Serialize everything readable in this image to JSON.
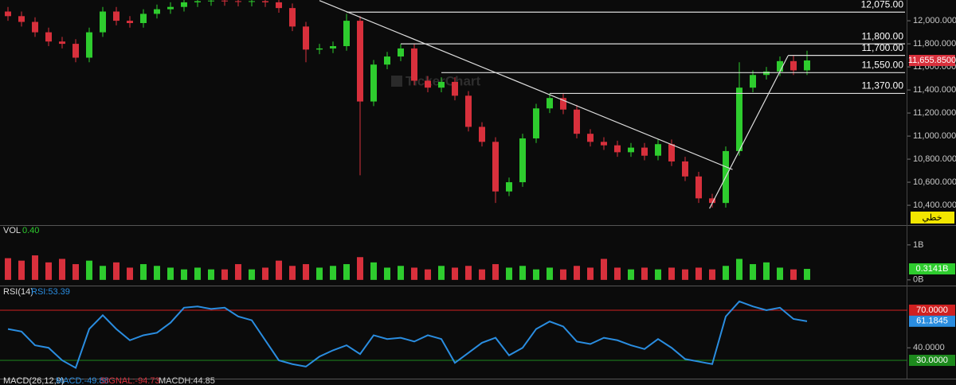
{
  "watermark": "TickerChart",
  "chart_data": [
    {
      "type": "candlestick",
      "mode_badge": "خطي",
      "last_value_label": "11,655.8500",
      "up_color": "#2ecc2e",
      "down_color": "#d8303c",
      "open": [
        12080,
        12040,
        11990,
        11900,
        11820,
        11800,
        11680,
        11900,
        12080,
        12000,
        11980,
        12060,
        12100,
        12120,
        12160,
        12170,
        12175,
        12170,
        12165,
        12170,
        12160,
        12110,
        11950,
        11750,
        11760,
        11780,
        12000,
        11300,
        11620,
        11690,
        11760,
        11480,
        11420,
        11470,
        11350,
        11080,
        10950,
        10520,
        10600,
        10980,
        11240,
        11330,
        11230,
        11020,
        10950,
        10920,
        10860,
        10900,
        10830,
        10930,
        10780,
        10650,
        10460,
        10420,
        10870,
        11420,
        11530,
        11560,
        11650,
        11570
      ],
      "high": [
        12120,
        12080,
        12030,
        11940,
        11860,
        11840,
        11940,
        12120,
        12120,
        12040,
        12100,
        12140,
        12160,
        12180,
        12180,
        12180,
        12180,
        12180,
        12180,
        12180,
        12180,
        12150,
        11990,
        11800,
        11820,
        12060,
        12040,
        11660,
        11730,
        11800,
        11800,
        11520,
        11510,
        11510,
        11390,
        11120,
        10990,
        10640,
        11020,
        11280,
        11370,
        11370,
        11270,
        11060,
        10990,
        10960,
        10940,
        10940,
        10970,
        10970,
        10820,
        10690,
        10500,
        10910,
        11640,
        11570,
        11600,
        11690,
        11700,
        11740
      ],
      "low": [
        12000,
        11950,
        11860,
        11780,
        11760,
        11640,
        11640,
        11860,
        11960,
        11940,
        11940,
        12020,
        12060,
        12080,
        12120,
        12130,
        12130,
        12125,
        12125,
        12120,
        12070,
        11910,
        11640,
        11710,
        11720,
        11740,
        10660,
        11260,
        11580,
        11650,
        11440,
        11380,
        11380,
        11310,
        11040,
        10910,
        10420,
        10480,
        10560,
        10940,
        11200,
        11190,
        10980,
        10910,
        10880,
        10820,
        10820,
        10790,
        10790,
        10740,
        10610,
        10420,
        10380,
        10380,
        10830,
        11380,
        11490,
        11520,
        11530,
        11530
      ],
      "close": [
        12040,
        11990,
        11900,
        11820,
        11800,
        11680,
        11900,
        12080,
        12000,
        11980,
        12060,
        12100,
        12120,
        12160,
        12170,
        12175,
        12170,
        12165,
        12170,
        12160,
        12110,
        11950,
        11750,
        11760,
        11780,
        12000,
        11300,
        11620,
        11690,
        11760,
        11480,
        11420,
        11470,
        11350,
        11080,
        10950,
        10520,
        10600,
        10980,
        11240,
        11330,
        11230,
        11020,
        10950,
        10920,
        10860,
        10900,
        10830,
        10930,
        10780,
        10650,
        10460,
        10420,
        10870,
        11420,
        11530,
        11560,
        11650,
        11570,
        11655.85
      ],
      "ylim": [
        10228,
        12180
      ],
      "yticks": [
        {
          "value": 10400,
          "label": "10,400.0000"
        },
        {
          "value": 10600,
          "label": "10,600.0000"
        },
        {
          "value": 10800,
          "label": "10,800.0000"
        },
        {
          "value": 11000,
          "label": "11,000.0000"
        },
        {
          "value": 11200,
          "label": "11,200.0000"
        },
        {
          "value": 11400,
          "label": "11,400.0000"
        },
        {
          "value": 11600,
          "label": "11,600.0000"
        },
        {
          "value": 11800,
          "label": "11,800.0000"
        },
        {
          "value": 12000,
          "label": "12,000.0000"
        }
      ],
      "levels": [
        {
          "value": 12075,
          "label": "12,075.00",
          "from": 25
        },
        {
          "value": 11800,
          "label": "11,800.00",
          "from": 29
        },
        {
          "value": 11700,
          "label": "11,700.00",
          "from": 57.6
        },
        {
          "value": 11550,
          "label": "11,550.00",
          "from": 32
        },
        {
          "value": 11370,
          "label": "11,370.00",
          "from": 40
        }
      ],
      "trendlines": [
        {
          "x": [
            23,
            53.5
          ],
          "y": [
            12175,
            10710
          ]
        },
        {
          "x": [
            51.8,
            57.6
          ],
          "y": [
            10372,
            11697
          ]
        }
      ]
    },
    {
      "type": "bar",
      "title": "VOL",
      "subtitle": "0.40",
      "last_value_label": "0.3141B",
      "values": [
        0.62,
        0.55,
        0.7,
        0.5,
        0.6,
        0.45,
        0.55,
        0.4,
        0.5,
        0.35,
        0.45,
        0.4,
        0.35,
        0.3,
        0.35,
        0.3,
        0.3,
        0.45,
        0.3,
        0.35,
        0.55,
        0.4,
        0.45,
        0.35,
        0.4,
        0.45,
        0.65,
        0.5,
        0.35,
        0.4,
        0.35,
        0.3,
        0.4,
        0.35,
        0.4,
        0.3,
        0.45,
        0.35,
        0.4,
        0.3,
        0.35,
        0.3,
        0.4,
        0.35,
        0.6,
        0.35,
        0.3,
        0.35,
        0.3,
        0.35,
        0.3,
        0.35,
        0.3,
        0.4,
        0.6,
        0.45,
        0.5,
        0.35,
        0.3,
        0.3141
      ],
      "ylim": [
        -0.14,
        1.52
      ],
      "yticks": [
        {
          "value": 1,
          "label": "1B"
        },
        {
          "value": 0,
          "label": "0B"
        }
      ]
    },
    {
      "type": "line",
      "title": "RSI(14)",
      "subtitle": "RSI:53.39",
      "last_value_label": "61.1845",
      "series": [
        {
          "color": "#2a8de0",
          "values": [
            55,
            53,
            42,
            40,
            30,
            24,
            55,
            66,
            55,
            46,
            50,
            52,
            60,
            72,
            73,
            71,
            72,
            65,
            62,
            46,
            30,
            27,
            25,
            33,
            38,
            42,
            35,
            50,
            47,
            48,
            45,
            50,
            47,
            28,
            36,
            44,
            48,
            34,
            40,
            55,
            61,
            57,
            45,
            43,
            48,
            46,
            42,
            39,
            47,
            40,
            31,
            29,
            27,
            65,
            77,
            73,
            70,
            72,
            63,
            61.1845
          ]
        }
      ],
      "ylim": [
        15.4,
        89
      ],
      "yticks": [
        {
          "value": 40,
          "label": "40.0000"
        }
      ],
      "levels": [
        {
          "value": 70,
          "label": "70.0000",
          "color": "#d02020"
        },
        {
          "value": 30,
          "label": "30.0000",
          "color": "#1d8a1d"
        }
      ]
    }
  ],
  "macd_header": {
    "title": "MACD(26,12,9)",
    "macd": "MACD:-49.88",
    "signal": "SIGNAL:-94.73",
    "macdh": "MACDH:44.85"
  }
}
